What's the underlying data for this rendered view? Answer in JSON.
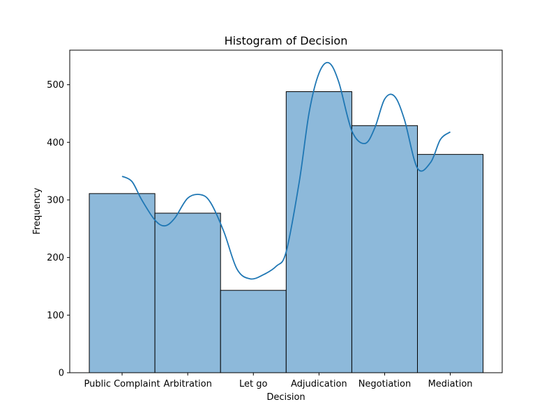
{
  "chart_data": {
    "type": "bar",
    "title": "Histogram of Decision",
    "xlabel": "Decision",
    "ylabel": "Frequency",
    "categories": [
      "Public Complaint",
      "Arbitration",
      "Let go",
      "Adjudication",
      "Negotiation",
      "Mediation"
    ],
    "values": [
      311,
      277,
      143,
      488,
      429,
      379
    ],
    "kde": {
      "x": [
        0.0,
        0.15,
        0.3,
        0.5,
        0.65,
        0.8,
        1.0,
        1.2,
        1.35,
        1.55,
        1.75,
        1.95,
        2.15,
        2.35,
        2.5,
        2.7,
        2.85,
        3.0,
        3.15,
        3.3,
        3.5,
        3.7,
        3.85,
        4.0,
        4.15,
        4.3,
        4.5,
        4.7,
        4.85,
        5.0
      ],
      "y": [
        341,
        332,
        300,
        265,
        255,
        268,
        303,
        309,
        295,
        245,
        180,
        163,
        170,
        185,
        210,
        332,
        452,
        520,
        538,
        505,
        420,
        398,
        425,
        475,
        480,
        440,
        355,
        365,
        405,
        418
      ]
    },
    "ylim": [
      0,
      560
    ],
    "yticks": [
      0,
      100,
      200,
      300,
      400,
      500
    ],
    "bar_color": "#8db9da",
    "bar_edge": "#000000",
    "line_color": "#1f77b4",
    "grid": false,
    "legend": "none"
  }
}
